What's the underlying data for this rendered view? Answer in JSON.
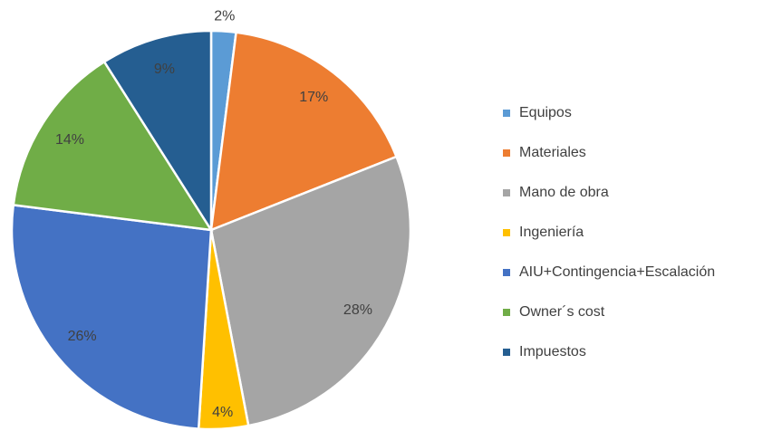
{
  "chart_data": {
    "type": "pie",
    "categories": [
      "Equipos",
      "Materiales",
      "Mano de obra",
      "Ingeniería",
      "AIU+Contingencia+Escalación",
      "Owner´s cost",
      "Impuestos"
    ],
    "values": [
      2,
      17,
      28,
      4,
      26,
      14,
      9
    ],
    "value_labels": [
      "2%",
      "17%",
      "28%",
      "4%",
      "26%",
      "14%",
      "9%"
    ],
    "colors": [
      "#5b9bd5",
      "#ed7d31",
      "#a5a5a5",
      "#ffc000",
      "#4472c4",
      "#70ad47",
      "#255e91"
    ],
    "legend": "right"
  }
}
